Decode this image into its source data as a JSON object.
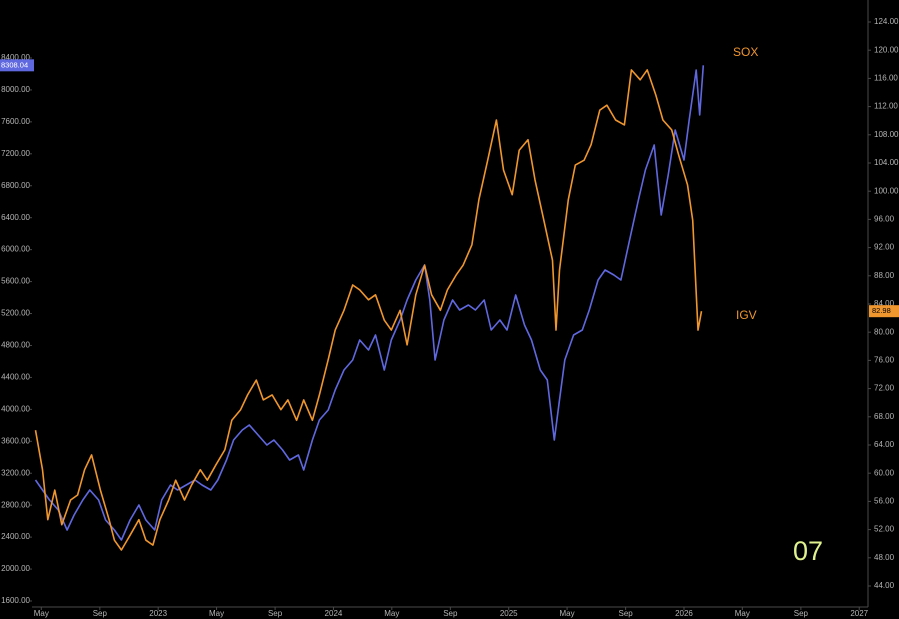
{
  "chart_data": {
    "type": "line",
    "annotation": "07",
    "xlim": [
      2022.28,
      2027.05
    ],
    "ylim": [
      1525,
      9126
    ],
    "y2lim": [
      41.02,
      127.12
    ],
    "xticks": [
      {
        "value": 2022.333,
        "label": "May"
      },
      {
        "value": 2022.667,
        "label": "Sep"
      },
      2023,
      {
        "value": 2023.333,
        "label": "May"
      },
      {
        "value": 2023.667,
        "label": "Sep"
      },
      2024,
      {
        "value": 2024.333,
        "label": "May"
      },
      {
        "value": 2024.667,
        "label": "Sep"
      },
      2025,
      {
        "value": 2025.333,
        "label": "May"
      },
      {
        "value": 2025.667,
        "label": "Sep"
      },
      2026,
      {
        "value": 2026.333,
        "label": "May"
      },
      {
        "value": 2026.667,
        "label": "Sep"
      },
      2027
    ],
    "yticks": [
      {
        "value": 1600,
        "label": "1600.00"
      },
      {
        "value": 2000,
        "label": "2000.00"
      },
      {
        "value": 2400,
        "label": "2400.00"
      },
      {
        "value": 2800,
        "label": "2800.00"
      },
      {
        "value": 3200,
        "label": "3200.00"
      },
      {
        "value": 3600,
        "label": "3600.00"
      },
      {
        "value": 4000,
        "label": "4000.00"
      },
      {
        "value": 4400,
        "label": "4400.00"
      },
      {
        "value": 4800,
        "label": "4800.00"
      },
      {
        "value": 5200,
        "label": "5200.00"
      },
      {
        "value": 5600,
        "label": "5600.00"
      },
      {
        "value": 6000,
        "label": "6000.00"
      },
      {
        "value": 6400,
        "label": "6400.00"
      },
      {
        "value": 6800,
        "label": "6800.00"
      },
      {
        "value": 7200,
        "label": "7200.00"
      },
      {
        "value": 7600,
        "label": "7600.00"
      },
      {
        "value": 8000,
        "label": "8000.00"
      },
      {
        "value": 8400,
        "label": "8400.00"
      }
    ],
    "y2ticks": [
      {
        "value": 44,
        "label": "44.00"
      },
      {
        "value": 48,
        "label": "48.00"
      },
      {
        "value": 52,
        "label": "52.00"
      },
      {
        "value": 56,
        "label": "56.00"
      },
      {
        "value": 60,
        "label": "60.00"
      },
      {
        "value": 64,
        "label": "64.00"
      },
      {
        "value": 68,
        "label": "68.00"
      },
      {
        "value": 72,
        "label": "72.00"
      },
      {
        "value": 76,
        "label": "76.00"
      },
      {
        "value": 80,
        "label": "80.00"
      },
      {
        "value": 84,
        "label": "84.00"
      },
      {
        "value": 88,
        "label": "88.00"
      },
      {
        "value": 92,
        "label": "92.00"
      },
      {
        "value": 96,
        "label": "96.00"
      },
      {
        "value": 100,
        "label": "100.00"
      },
      {
        "value": 104,
        "label": "104.00"
      },
      {
        "value": 108,
        "label": "108.00"
      },
      {
        "value": 112,
        "label": "112.00"
      },
      {
        "value": 116,
        "label": "116.00"
      },
      {
        "value": 120,
        "label": "120.00"
      },
      {
        "value": 124,
        "label": "124.00"
      }
    ],
    "series": [
      {
        "name": "SOX",
        "color": "#6068e0",
        "axis": "y",
        "x": [
          2022.3,
          2022.34,
          2022.38,
          2022.43,
          2022.48,
          2022.52,
          2022.57,
          2022.61,
          2022.66,
          2022.7,
          2022.75,
          2022.79,
          2022.84,
          2022.89,
          2022.93,
          2022.98,
          2023.02,
          2023.07,
          2023.11,
          2023.16,
          2023.21,
          2023.25,
          2023.3,
          2023.34,
          2023.39,
          2023.43,
          2023.48,
          2023.52,
          2023.57,
          2023.62,
          2023.66,
          2023.71,
          2023.75,
          2023.8,
          2023.83,
          2023.88,
          2023.92,
          2023.97,
          2024.01,
          2024.06,
          2024.11,
          2024.15,
          2024.2,
          2024.24,
          2024.29,
          2024.33,
          2024.38,
          2024.42,
          2024.47,
          2024.52,
          2024.55,
          2024.58,
          2024.63,
          2024.68,
          2024.72,
          2024.77,
          2024.81,
          2024.86,
          2024.9,
          2024.95,
          2024.99,
          2025.04,
          2025.09,
          2025.13,
          2025.18,
          2025.22,
          2025.26,
          2025.29,
          2025.32,
          2025.37,
          2025.42,
          2025.46,
          2025.51,
          2025.55,
          2025.6,
          2025.64,
          2025.69,
          2025.74,
          2025.78,
          2025.83,
          2025.87,
          2025.91,
          2025.95,
          2026.0,
          2026.03,
          2026.07,
          2026.09,
          2026.11
        ],
        "values": [
          3115,
          2990,
          2865,
          2740,
          2489,
          2677,
          2865,
          2990,
          2865,
          2614,
          2489,
          2364,
          2614,
          2802,
          2614,
          2489,
          2865,
          3053,
          2990,
          3053,
          3115,
          3053,
          2990,
          3115,
          3366,
          3616,
          3741,
          3804,
          3679,
          3554,
          3616,
          3491,
          3366,
          3428,
          3241,
          3616,
          3867,
          3992,
          4242,
          4493,
          4618,
          4869,
          4743,
          4931,
          4493,
          4869,
          5119,
          5369,
          5620,
          5808,
          5369,
          4618,
          5119,
          5369,
          5244,
          5307,
          5244,
          5369,
          4994,
          5119,
          4994,
          5432,
          5056,
          4869,
          4493,
          4368,
          3616,
          4117,
          4618,
          4931,
          4994,
          5244,
          5620,
          5745,
          5683,
          5620,
          6121,
          6622,
          6997,
          7310,
          6434,
          6935,
          7498,
          7123,
          7624,
          8250,
          7686,
          8308.04
        ]
      },
      {
        "name": "IGV",
        "color": "#f0962e",
        "axis": "y2",
        "x": [
          2022.3,
          2022.34,
          2022.37,
          2022.41,
          2022.45,
          2022.5,
          2022.54,
          2022.58,
          2022.62,
          2022.67,
          2022.72,
          2022.75,
          2022.79,
          2022.84,
          2022.89,
          2022.93,
          2022.97,
          2023.01,
          2023.06,
          2023.1,
          2023.15,
          2023.19,
          2023.24,
          2023.28,
          2023.33,
          2023.38,
          2023.42,
          2023.47,
          2023.51,
          2023.56,
          2023.6,
          2023.65,
          2023.7,
          2023.74,
          2023.79,
          2023.83,
          2023.88,
          2023.92,
          2023.97,
          2024.01,
          2024.06,
          2024.11,
          2024.15,
          2024.2,
          2024.24,
          2024.29,
          2024.33,
          2024.38,
          2024.42,
          2024.47,
          2024.52,
          2024.56,
          2024.61,
          2024.65,
          2024.7,
          2024.74,
          2024.79,
          2024.83,
          2024.88,
          2024.93,
          2024.97,
          2025.02,
          2025.06,
          2025.11,
          2025.15,
          2025.2,
          2025.25,
          2025.27,
          2025.29,
          2025.34,
          2025.38,
          2025.43,
          2025.47,
          2025.52,
          2025.56,
          2025.61,
          2025.66,
          2025.7,
          2025.75,
          2025.79,
          2025.84,
          2025.88,
          2025.93,
          2025.97,
          2026.02,
          2026.05,
          2026.08,
          2026.1
        ],
        "values": [
          66.1,
          60.5,
          53.4,
          57.6,
          52.7,
          56.2,
          56.9,
          60.5,
          62.6,
          57.6,
          53.4,
          50.5,
          49.1,
          51.2,
          53.4,
          50.5,
          49.8,
          53.4,
          56.2,
          59.0,
          56.2,
          58.3,
          60.5,
          59.0,
          61.2,
          63.3,
          67.5,
          69.0,
          71.1,
          73.2,
          70.4,
          71.1,
          69.0,
          70.4,
          67.5,
          70.4,
          67.5,
          71.1,
          76.1,
          80.3,
          83.1,
          86.7,
          86.0,
          84.6,
          85.3,
          81.7,
          80.3,
          83.1,
          78.2,
          85.3,
          89.5,
          85.3,
          83.1,
          86.0,
          88.1,
          89.5,
          92.4,
          98.8,
          104.4,
          110.1,
          103.0,
          99.5,
          105.8,
          107.3,
          101.6,
          95.9,
          90.2,
          80.3,
          88.8,
          98.8,
          103.7,
          104.4,
          106.6,
          111.5,
          112.2,
          110.1,
          109.4,
          117.2,
          115.8,
          117.2,
          113.6,
          110.1,
          108.7,
          105.1,
          100.9,
          95.9,
          80.3,
          82.98
        ]
      }
    ]
  }
}
